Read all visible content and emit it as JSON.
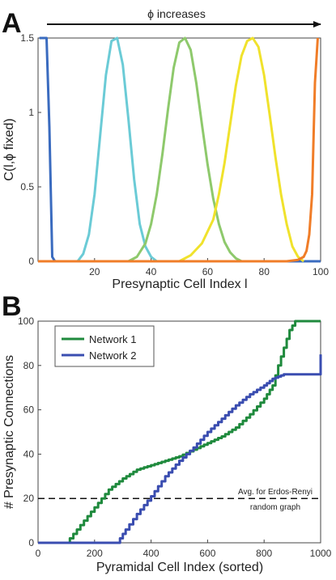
{
  "chart_data": [
    {
      "panel": "A",
      "type": "line",
      "xlabel": "Presynaptic Cell Index l",
      "ylabel": "C(l,ϕ fixed)",
      "annotation": "ϕ increases",
      "xlim": [
        0,
        100
      ],
      "ylim": [
        0,
        1.5
      ],
      "xticks": [
        "20",
        "40",
        "60",
        "80",
        "100"
      ],
      "yticks": [
        "0",
        "0.5",
        "1",
        "1.5"
      ],
      "grid": false,
      "series": [
        {
          "color": "#3a6bbf",
          "x": [
            0.5,
            1,
            2,
            3,
            4,
            5,
            6,
            8,
            100
          ],
          "y": [
            1.5,
            1.5,
            1.5,
            1.5,
            0.9,
            0.03,
            0,
            0,
            0
          ]
        },
        {
          "color": "#6bcbd6",
          "x": [
            14,
            16,
            18,
            20,
            22,
            24,
            26,
            28,
            30,
            32,
            34,
            36,
            38,
            40,
            42
          ],
          "y": [
            0,
            0.05,
            0.18,
            0.45,
            0.85,
            1.25,
            1.48,
            1.5,
            1.32,
            0.95,
            0.55,
            0.25,
            0.1,
            0.03,
            0
          ]
        },
        {
          "color": "#8ec96c",
          "x": [
            32,
            35,
            38,
            40,
            42,
            44,
            46,
            48,
            50,
            52,
            54,
            56,
            58,
            60,
            62,
            64,
            66,
            68,
            70,
            72
          ],
          "y": [
            0,
            0.03,
            0.12,
            0.25,
            0.45,
            0.72,
            1.02,
            1.3,
            1.47,
            1.5,
            1.42,
            1.2,
            0.92,
            0.65,
            0.42,
            0.25,
            0.13,
            0.06,
            0.02,
            0
          ]
        },
        {
          "color": "#f0e22c",
          "x": [
            50,
            54,
            58,
            62,
            64,
            66,
            68,
            70,
            72,
            74,
            76,
            78,
            80,
            82,
            84,
            86,
            88,
            90,
            92,
            94
          ],
          "y": [
            0,
            0.04,
            0.12,
            0.28,
            0.45,
            0.66,
            0.92,
            1.18,
            1.38,
            1.48,
            1.5,
            1.44,
            1.25,
            0.98,
            0.7,
            0.45,
            0.25,
            0.1,
            0.03,
            0
          ]
        },
        {
          "color": "#f07d28",
          "x": [
            0,
            88,
            92,
            94,
            95,
            96,
            97,
            98,
            99
          ],
          "y": [
            0,
            0,
            0.01,
            0.03,
            0.07,
            0.18,
            0.45,
            1.2,
            1.5
          ]
        }
      ]
    },
    {
      "panel": "B",
      "type": "line",
      "xlabel": "Pyramidal Cell Index (sorted)",
      "ylabel": "# Presynaptic Connections",
      "xlim": [
        0,
        1000
      ],
      "ylim": [
        0,
        100
      ],
      "xticks": [
        "0",
        "200",
        "400",
        "600",
        "800",
        "1000"
      ],
      "yticks": [
        "0",
        "20",
        "40",
        "60",
        "80",
        "100"
      ],
      "grid": false,
      "legend": "top-left",
      "reference_line": {
        "y": 20,
        "label_line1": "Avg. for Erdos-Renyi",
        "label_line2": "random graph"
      },
      "series": [
        {
          "name": "Network 1",
          "color": "#1f8a3d",
          "x": [
            0,
            100,
            150,
            200,
            250,
            300,
            350,
            400,
            450,
            500,
            550,
            600,
            650,
            700,
            750,
            800,
            830,
            850,
            870,
            890,
            910,
            1000
          ],
          "y": [
            0,
            0,
            8,
            16,
            24,
            29,
            33,
            35,
            37,
            39,
            42,
            45,
            48,
            52,
            58,
            65,
            71,
            80,
            88,
            96,
            100,
            100
          ]
        },
        {
          "name": "Network 2",
          "color": "#3a4db0",
          "x": [
            0,
            280,
            290,
            310,
            350,
            400,
            450,
            500,
            550,
            600,
            650,
            700,
            750,
            800,
            830,
            850,
            870,
            990,
            1000
          ],
          "y": [
            0,
            0,
            2,
            6,
            13,
            21,
            30,
            37,
            43,
            50,
            56,
            62,
            67,
            71,
            74,
            75,
            76,
            76,
            85
          ]
        }
      ]
    }
  ]
}
